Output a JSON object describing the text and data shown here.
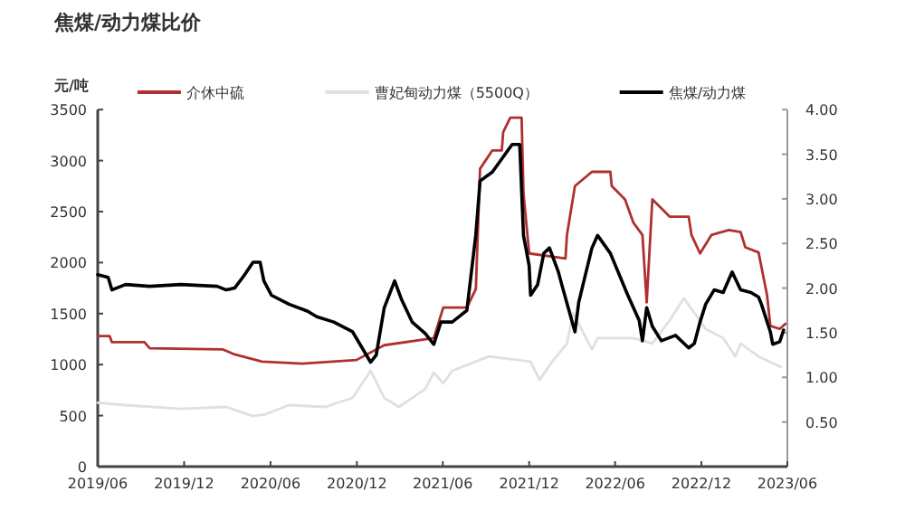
{
  "chart_data": {
    "type": "line",
    "title": "焦煤/动力煤比价",
    "ylabel": "元/吨",
    "legend": "top",
    "xlim": [
      "2019-06-01",
      "2023-06-01"
    ],
    "xticks": [
      {
        "value": "2019-06-01",
        "label": "2019/06"
      },
      {
        "value": "2019-12-01",
        "label": "2019/12"
      },
      {
        "value": "2020-06-01",
        "label": "2020/06"
      },
      {
        "value": "2020-12-01",
        "label": "2020/12"
      },
      {
        "value": "2021-06-01",
        "label": "2021/06"
      },
      {
        "value": "2021-12-01",
        "label": "2021/12"
      },
      {
        "value": "2022-06-01",
        "label": "2022/06"
      },
      {
        "value": "2022-12-01",
        "label": "2022/12"
      },
      {
        "value": "2023-06-01",
        "label": "2023/06"
      }
    ],
    "ylim": [
      0,
      3500
    ],
    "yticks": [
      0,
      500,
      1000,
      1500,
      2000,
      2500,
      3000,
      3500
    ],
    "y2lim": [
      0,
      4
    ],
    "y2ticks": [
      {
        "value": 0.5,
        "label": "0.50"
      },
      {
        "value": 1,
        "label": "1.00"
      },
      {
        "value": 1.5,
        "label": "1.50"
      },
      {
        "value": 2,
        "label": "2.00"
      },
      {
        "value": 2.5,
        "label": "2.50"
      },
      {
        "value": 3,
        "label": "3.00"
      },
      {
        "value": 3.5,
        "label": "3.50"
      },
      {
        "value": 4,
        "label": "4.00"
      }
    ],
    "series": [
      {
        "name": "介休中硫",
        "color": "#b03030",
        "x": [
          "2019-06-01",
          "2019-06-26",
          "2019-07-01",
          "2019-09-08",
          "2019-09-19",
          "2020-02-20",
          "2020-03-17",
          "2020-05-14",
          "2020-08-07",
          "2020-11-30",
          "2021-01-28",
          "2021-05-13",
          "2021-06-02",
          "2021-07-22",
          "2021-08-10",
          "2021-08-19",
          "2021-09-14",
          "2021-10-04",
          "2021-10-07",
          "2021-10-22",
          "2021-11-15",
          "2021-11-19",
          "2021-12-01",
          "2022-02-16",
          "2022-02-19",
          "2022-03-08",
          "2022-04-13",
          "2022-05-22",
          "2022-05-25",
          "2022-06-22",
          "2022-07-10",
          "2022-07-29",
          "2022-08-07",
          "2022-08-19",
          "2022-09-25",
          "2022-11-04",
          "2022-11-10",
          "2022-11-28",
          "2022-12-22",
          "2023-01-28",
          "2023-02-22",
          "2023-03-04",
          "2023-04-01",
          "2023-04-19",
          "2023-04-26",
          "2023-05-16",
          "2023-05-28"
        ],
        "values": [
          1280,
          1280,
          1220,
          1220,
          1160,
          1150,
          1100,
          1030,
          1010,
          1045,
          1190,
          1260,
          1560,
          1560,
          1740,
          2920,
          3100,
          3100,
          3280,
          3420,
          3420,
          2680,
          2090,
          2040,
          2270,
          2750,
          2890,
          2890,
          2750,
          2620,
          2390,
          2270,
          1610,
          2620,
          2450,
          2450,
          2270,
          2090,
          2270,
          2320,
          2300,
          2150,
          2100,
          1680,
          1380,
          1350,
          1400
        ]
      },
      {
        "name": "曹妃甸动力煤（5500Q）",
        "color": "#e0e0e0",
        "x": [
          "2019-06-01",
          "2019-07-30",
          "2019-11-24",
          "2020-02-28",
          "2020-04-25",
          "2020-05-22",
          "2020-07-10",
          "2020-09-25",
          "2020-11-22",
          "2020-12-30",
          "2021-01-28",
          "2021-02-28",
          "2021-04-25",
          "2021-05-13",
          "2021-06-02",
          "2021-06-21",
          "2021-09-07",
          "2021-12-04",
          "2021-12-23",
          "2022-01-19",
          "2022-02-19",
          "2022-03-04",
          "2022-04-13",
          "2022-04-25",
          "2022-07-10",
          "2022-08-19",
          "2022-09-25",
          "2022-10-25",
          "2022-12-10",
          "2023-01-16",
          "2023-02-11",
          "2023-02-22",
          "2023-04-01",
          "2023-05-19"
        ],
        "values": [
          626,
          603,
          567,
          585,
          496,
          514,
          603,
          585,
          674,
          940,
          674,
          585,
          762,
          922,
          816,
          940,
          1080,
          1030,
          850,
          1030,
          1206,
          1507,
          1150,
          1260,
          1260,
          1206,
          1436,
          1650,
          1350,
          1260,
          1080,
          1206,
          1080,
          975
        ]
      },
      {
        "name": "焦煤/动力煤",
        "color": "#000000",
        "axis": "y2",
        "x": [
          "2019-06-01",
          "2019-06-23",
          "2019-07-01",
          "2019-07-30",
          "2019-09-19",
          "2019-11-24",
          "2020-02-09",
          "2020-02-28",
          "2020-03-17",
          "2020-04-06",
          "2020-04-25",
          "2020-05-10",
          "2020-05-18",
          "2020-06-03",
          "2020-07-10",
          "2020-08-19",
          "2020-09-07",
          "2020-10-13",
          "2020-11-22",
          "2020-12-30",
          "2021-01-11",
          "2021-01-28",
          "2021-02-19",
          "2021-03-05",
          "2021-03-28",
          "2021-04-25",
          "2021-05-13",
          "2021-05-28",
          "2021-06-21",
          "2021-07-22",
          "2021-08-10",
          "2021-08-19",
          "2021-09-14",
          "2021-10-07",
          "2021-10-26",
          "2021-11-11",
          "2021-11-19",
          "2021-12-01",
          "2021-12-04",
          "2021-12-19",
          "2022-01-01",
          "2022-01-13",
          "2022-02-01",
          "2022-02-08",
          "2022-03-08",
          "2022-03-16",
          "2022-04-13",
          "2022-04-25",
          "2022-05-22",
          "2022-06-28",
          "2022-07-22",
          "2022-07-29",
          "2022-08-07",
          "2022-08-19",
          "2022-09-07",
          "2022-10-07",
          "2022-11-04",
          "2022-11-16",
          "2022-11-28",
          "2022-12-10",
          "2022-12-28",
          "2023-01-16",
          "2023-02-04",
          "2023-02-22",
          "2023-03-16",
          "2023-04-01",
          "2023-04-07",
          "2023-04-26",
          "2023-05-01",
          "2023-05-16",
          "2023-05-24"
        ],
        "values": [
          2.15,
          2.12,
          1.98,
          2.04,
          2.02,
          2.04,
          2.02,
          1.98,
          2.0,
          2.14,
          2.29,
          2.29,
          2.08,
          1.92,
          1.82,
          1.74,
          1.68,
          1.62,
          1.51,
          1.17,
          1.25,
          1.78,
          2.08,
          1.88,
          1.62,
          1.49,
          1.37,
          1.62,
          1.62,
          1.75,
          2.6,
          3.2,
          3.3,
          3.47,
          3.61,
          3.61,
          2.59,
          2.25,
          1.92,
          2.04,
          2.39,
          2.45,
          2.18,
          2.04,
          1.51,
          1.84,
          2.45,
          2.59,
          2.39,
          1.92,
          1.64,
          1.41,
          1.78,
          1.57,
          1.41,
          1.47,
          1.33,
          1.38,
          1.62,
          1.82,
          1.98,
          1.95,
          2.18,
          1.98,
          1.95,
          1.9,
          1.82,
          1.51,
          1.37,
          1.4,
          1.53
        ]
      }
    ]
  }
}
